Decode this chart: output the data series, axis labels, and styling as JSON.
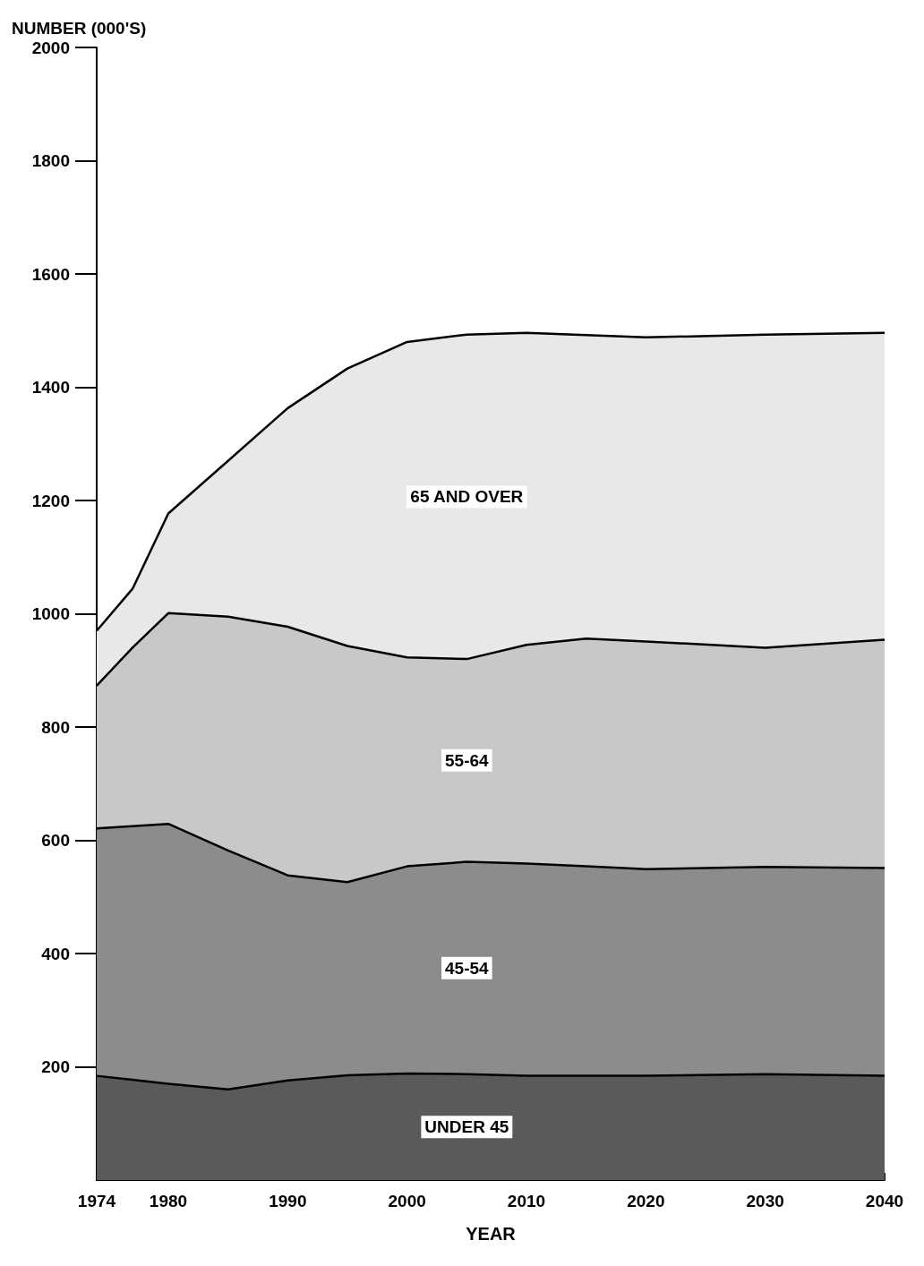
{
  "chart_data": {
    "type": "area",
    "stacked": true,
    "xlabel": "YEAR",
    "ylabel": "NUMBER (000'S)",
    "x": [
      1974,
      1977,
      1980,
      1985,
      1990,
      1995,
      2000,
      2005,
      2010,
      2015,
      2020,
      2030,
      2040
    ],
    "series": [
      {
        "name": "UNDER 45",
        "color": "#5a5a5a",
        "values": [
          184,
          177,
          170,
          160,
          176,
          185,
          188,
          187,
          184,
          184,
          184,
          187,
          184
        ]
      },
      {
        "name": "45-54",
        "color": "#8c8c8c",
        "values": [
          437,
          448,
          459,
          422,
          362,
          341,
          366,
          375,
          375,
          370,
          365,
          366,
          367
        ]
      },
      {
        "name": "55-64",
        "color": "#c8c8c8",
        "values": [
          252,
          315,
          372,
          413,
          439,
          417,
          369,
          358,
          386,
          402,
          402,
          387,
          403
        ]
      },
      {
        "name": "65 AND OVER",
        "color": "#e8e8e8",
        "values": [
          97,
          104,
          176,
          275,
          386,
          490,
          557,
          573,
          551,
          536,
          537,
          553,
          542
        ]
      }
    ],
    "xlim": [
      1974,
      2040
    ],
    "xticks": [
      1974,
      1980,
      1990,
      2000,
      2010,
      2020,
      2030,
      2040
    ],
    "ylim": [
      0,
      2000
    ],
    "yticks": [
      200,
      400,
      600,
      800,
      1000,
      1200,
      1400,
      1600,
      1800,
      2000
    ],
    "grid": false,
    "legend": false
  }
}
